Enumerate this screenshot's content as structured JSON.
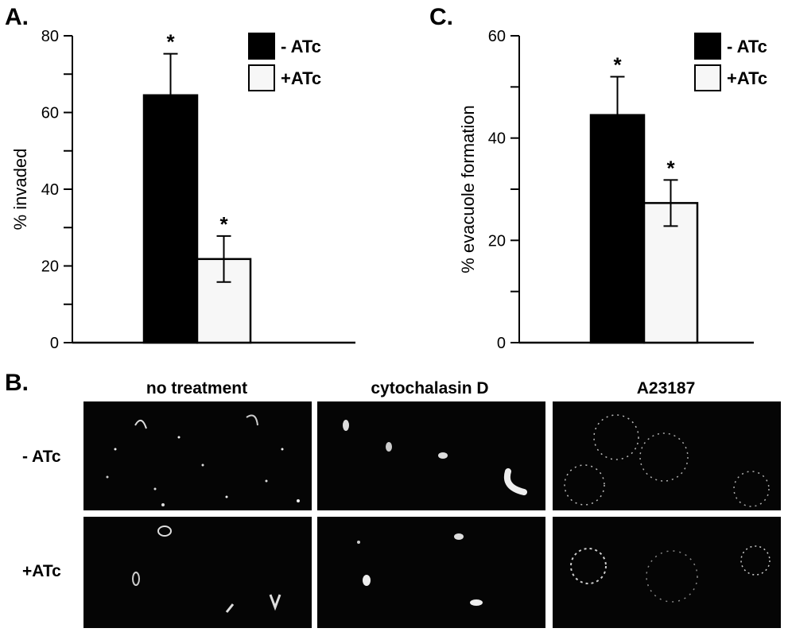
{
  "panels": {
    "a_label": "A.",
    "b_label": "B.",
    "c_label": "C."
  },
  "chart_data": [
    {
      "type": "bar",
      "categories": [
        "- ATc",
        "+ATc"
      ],
      "values": [
        64.5,
        21.8
      ],
      "errors": [
        10.8,
        6.0
      ],
      "significance": [
        "*",
        "*"
      ],
      "colors": [
        "#000000",
        "#f7f7f7"
      ],
      "title": "",
      "xlabel": "",
      "ylabel": "% invaded",
      "ylim": [
        0,
        80
      ],
      "yticks": [
        0,
        20,
        40,
        60,
        80
      ],
      "legend": [
        "- ATc",
        "+ATc"
      ],
      "legend_position": "top-right",
      "grid": false
    },
    {
      "type": "bar",
      "categories": [
        "- ATc",
        "+ATc"
      ],
      "values": [
        44.5,
        27.3
      ],
      "errors": [
        7.5,
        4.5
      ],
      "significance": [
        "*",
        "*"
      ],
      "colors": [
        "#000000",
        "#f7f7f7"
      ],
      "title": "",
      "xlabel": "",
      "ylabel": "% evacuole formation",
      "ylim": [
        0,
        60
      ],
      "yticks": [
        0,
        20,
        40,
        60
      ],
      "legend": [
        "- ATc",
        "+ATc"
      ],
      "legend_position": "top-right",
      "grid": false
    }
  ],
  "micrographs": {
    "columns": [
      "no treatment",
      "cytochalasin D",
      "A23187"
    ],
    "rows": [
      "- ATc",
      "+ATc"
    ]
  }
}
